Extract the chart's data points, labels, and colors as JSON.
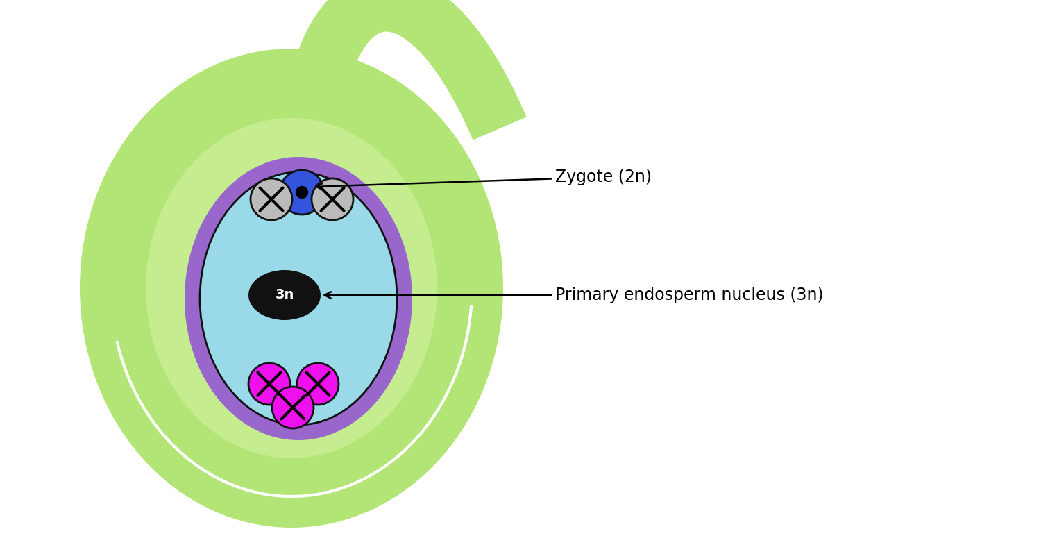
{
  "bg_color": "#ffffff",
  "green_outer": "#b2e575",
  "green_inner": "#c5ed90",
  "white_line": "#ffffff",
  "purple_ring": "#9966cc",
  "cyan_interior": "#99d9e8",
  "embryo_edge": "#111111",
  "blue_zygote": "#3355dd",
  "zygote_edge": "#111111",
  "zygote_dot": "#000000",
  "gray_synergid": "#bbbbbb",
  "synergid_edge": "#111111",
  "black_endosperm": "#111111",
  "endosperm_text": "#ffffff",
  "magenta_antipodal": "#ee11ee",
  "antipodal_edge": "#111111",
  "x_color": "#000000",
  "label_zygote": "Zygote (2n)",
  "label_endosperm": "Primary endosperm nucleus (3n)",
  "label_3n": "3n",
  "figsize": [
    15.0,
    7.85
  ],
  "dpi": 100
}
